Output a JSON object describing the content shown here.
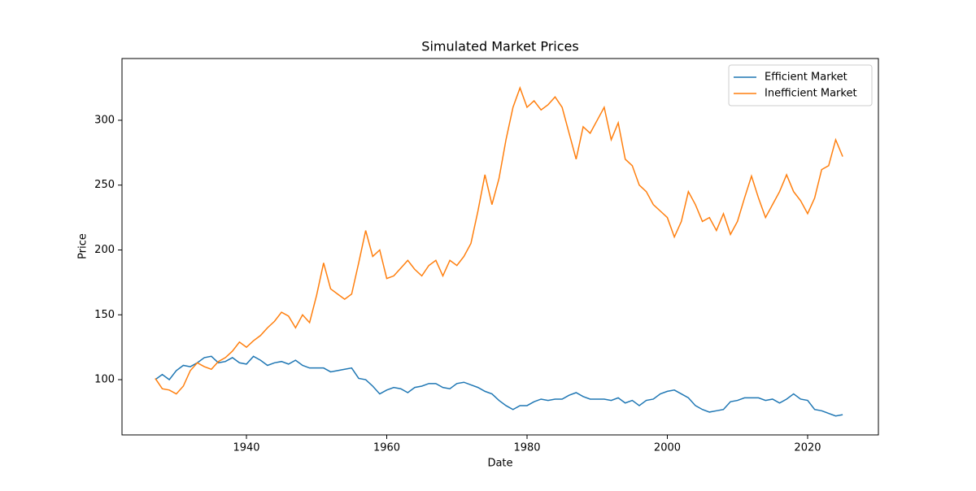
{
  "chart_data": {
    "type": "line",
    "title": "Simulated Market Prices",
    "xlabel": "Date",
    "ylabel": "Price",
    "x": [
      1927,
      1928,
      1929,
      1930,
      1931,
      1932,
      1933,
      1934,
      1935,
      1936,
      1937,
      1938,
      1939,
      1940,
      1941,
      1942,
      1943,
      1944,
      1945,
      1946,
      1947,
      1948,
      1949,
      1950,
      1951,
      1952,
      1953,
      1954,
      1955,
      1956,
      1957,
      1958,
      1959,
      1960,
      1961,
      1962,
      1963,
      1964,
      1965,
      1966,
      1967,
      1968,
      1969,
      1970,
      1971,
      1972,
      1973,
      1974,
      1975,
      1976,
      1977,
      1978,
      1979,
      1980,
      1981,
      1982,
      1983,
      1984,
      1985,
      1986,
      1987,
      1988,
      1989,
      1990,
      1991,
      1992,
      1993,
      1994,
      1995,
      1996,
      1997,
      1998,
      1999,
      2000,
      2001,
      2002,
      2003,
      2004,
      2005,
      2006,
      2007,
      2008,
      2009,
      2010,
      2011,
      2012,
      2013,
      2014,
      2015,
      2016,
      2017,
      2018,
      2019,
      2020,
      2021,
      2022,
      2023,
      2024,
      2025
    ],
    "series": [
      {
        "name": "Efficient Market",
        "color": "#1f77b4",
        "values": [
          100,
          104,
          100,
          107,
          111,
          110,
          113,
          117,
          118,
          113,
          114,
          117,
          113,
          112,
          118,
          115,
          111,
          113,
          114,
          112,
          115,
          111,
          109,
          109,
          109,
          106,
          107,
          108,
          109,
          101,
          100,
          95,
          89,
          92,
          94,
          93,
          90,
          94,
          95,
          97,
          97,
          94,
          93,
          97,
          98,
          96,
          94,
          91,
          89,
          84,
          80,
          77,
          80,
          80,
          83,
          85,
          84,
          85,
          85,
          88,
          90,
          87,
          85,
          85,
          85,
          84,
          86,
          82,
          84,
          80,
          84,
          85,
          89,
          91,
          92,
          89,
          86,
          80,
          77,
          75,
          76,
          77,
          83,
          84,
          86,
          86,
          86,
          84,
          85,
          82,
          85,
          89,
          85,
          84,
          77,
          76,
          74,
          72,
          73
        ]
      },
      {
        "name": "Inefficient Market",
        "color": "#ff7f0e",
        "values": [
          101,
          93,
          92,
          89,
          95,
          107,
          113,
          110,
          108,
          114,
          117,
          122,
          129,
          125,
          130,
          134,
          140,
          145,
          152,
          149,
          140,
          150,
          144,
          165,
          190,
          170,
          166,
          162,
          166,
          190,
          215,
          195,
          200,
          178,
          180,
          186,
          192,
          185,
          180,
          188,
          192,
          180,
          192,
          188,
          195,
          205,
          230,
          258,
          235,
          255,
          285,
          310,
          325,
          310,
          315,
          308,
          312,
          318,
          310,
          290,
          270,
          295,
          290,
          300,
          310,
          285,
          298,
          270,
          265,
          250,
          245,
          235,
          230,
          225,
          210,
          222,
          245,
          235,
          222,
          225,
          215,
          228,
          212,
          222,
          240,
          257,
          240,
          225,
          235,
          245,
          258,
          245,
          238,
          228,
          240,
          262,
          265,
          285,
          272
        ]
      }
    ],
    "xlim": [
      1922.26,
      2030.09
    ],
    "ylim": [
      57.4,
      347.6
    ],
    "xticks": [
      1940,
      1960,
      1980,
      2000,
      2020
    ],
    "yticks": [
      100,
      150,
      200,
      250,
      300
    ],
    "legend": "upper right"
  }
}
